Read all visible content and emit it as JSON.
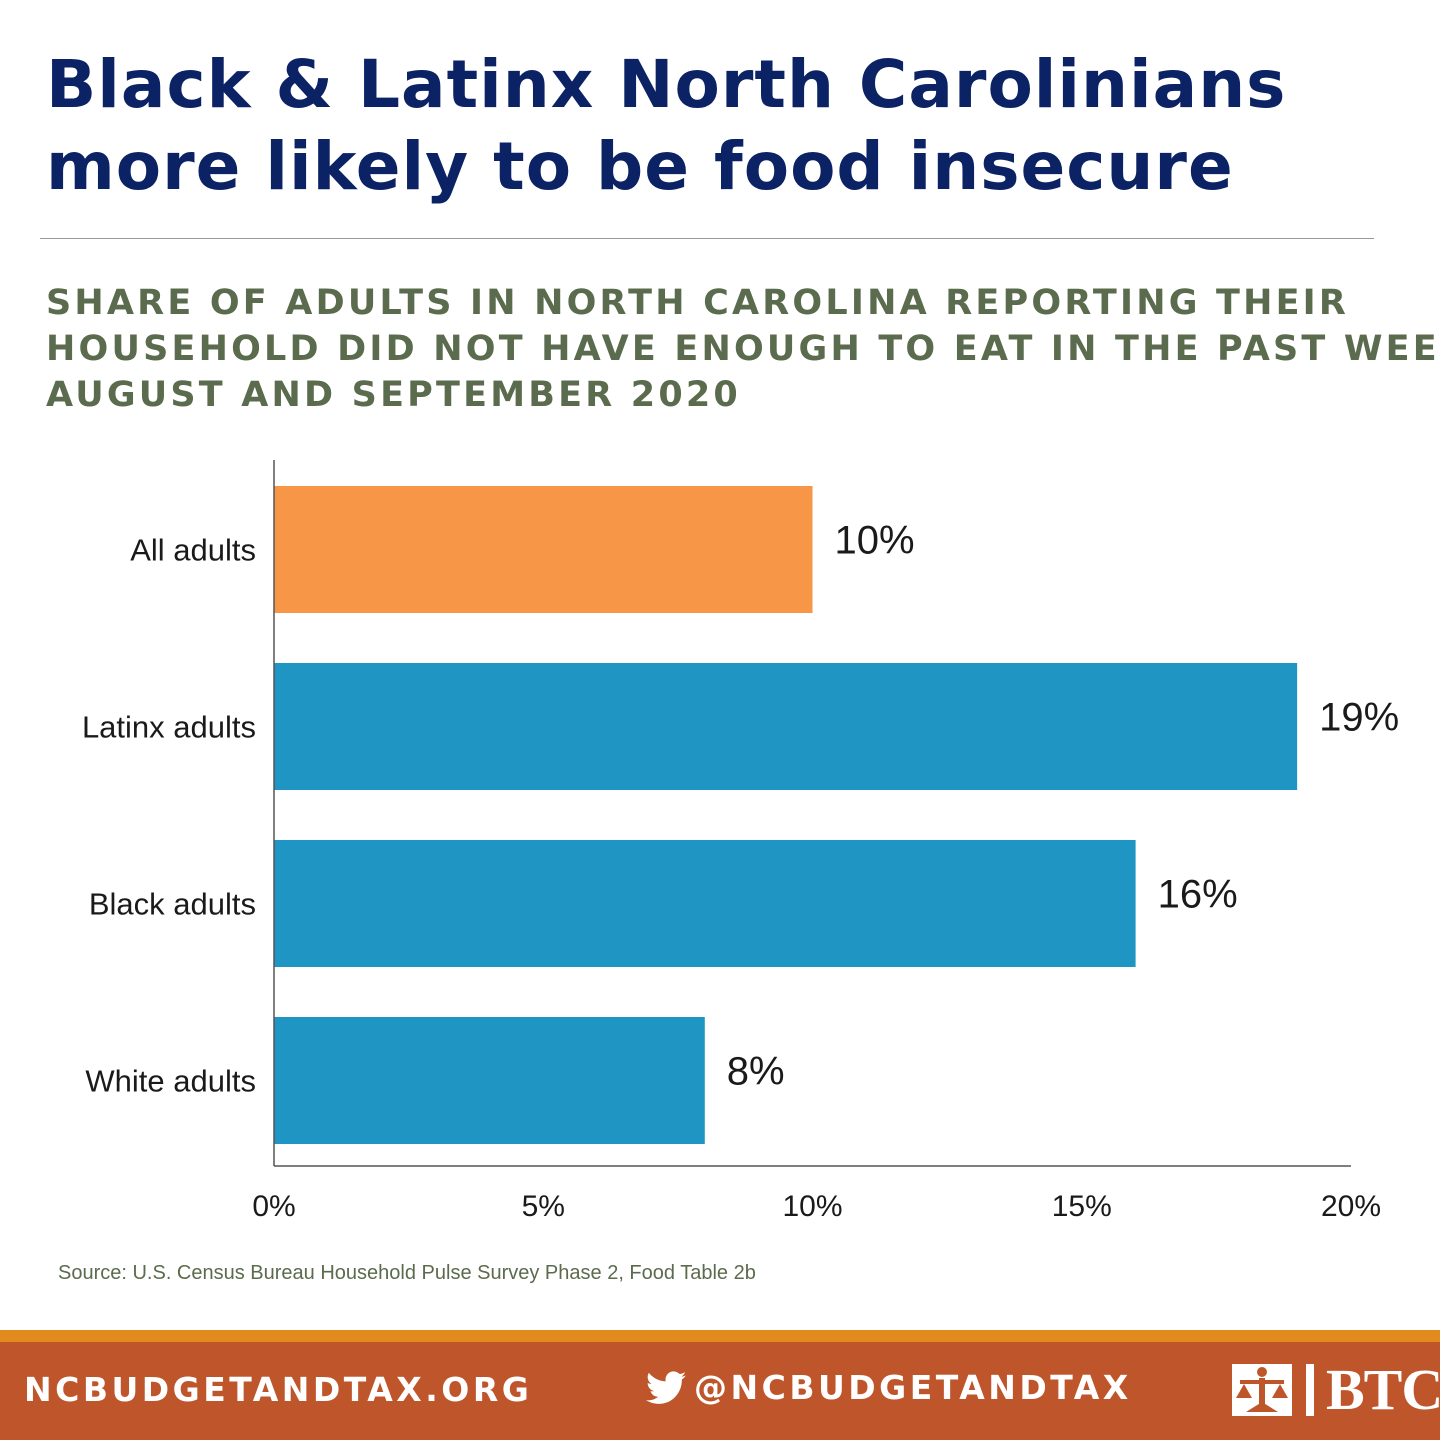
{
  "title": {
    "line1": "Black & Latinx North Carolinians",
    "line2": "more likely to be food insecure"
  },
  "subtitle": {
    "line1": "SHARE OF ADULTS IN NORTH CAROLINA REPORTING THEIR",
    "line2": "HOUSEHOLD DID NOT HAVE ENOUGH TO EAT IN THE PAST WEEK,",
    "line3": "AUGUST AND SEPTEMBER 2020"
  },
  "chart_data": {
    "type": "bar",
    "orientation": "horizontal",
    "categories": [
      "All adults",
      "Latinx adults",
      "Black adults",
      "White adults"
    ],
    "values": [
      10,
      19,
      16,
      8
    ],
    "value_labels": [
      "10%",
      "19%",
      "16%",
      "8%"
    ],
    "colors": [
      "#f79646",
      "#1f95c3",
      "#1f95c3",
      "#1f95c3"
    ],
    "xlim": [
      0,
      20
    ],
    "xticks": [
      0,
      5,
      10,
      15,
      20
    ],
    "xtick_labels": [
      "0%",
      "5%",
      "10%",
      "15%",
      "20%"
    ],
    "grid": false,
    "legend": "none"
  },
  "source": "Source: U.S. Census Bureau Household Pulse Survey Phase 2, Food Table 2b",
  "footer": {
    "website": "NCBUDGETANDTAX.ORG",
    "twitter_icon": "twitter-bird-icon",
    "twitter_handle": "@NCBUDGETANDTAX",
    "logo_icon": "btc-scales-logo-icon",
    "logo_text": "BTC",
    "stripe_color": "#e38a1e",
    "background_color": "#bf562b"
  }
}
